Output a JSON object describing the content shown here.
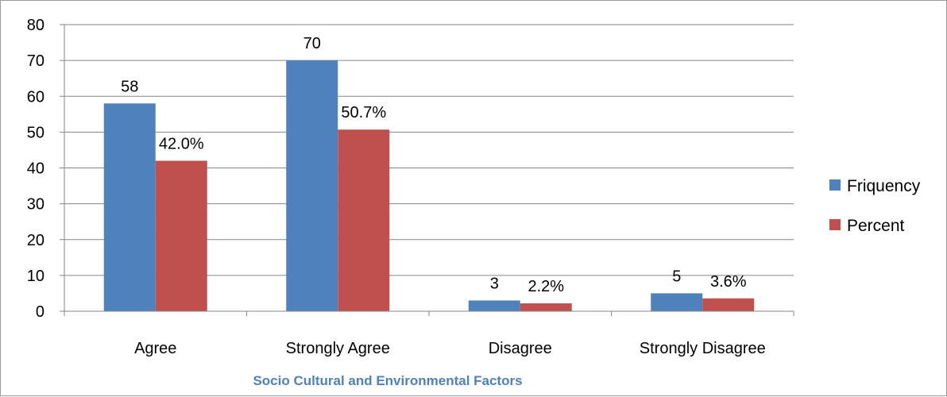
{
  "chart_data": {
    "type": "bar",
    "categories": [
      "Agree",
      "Strongly Agree",
      "Disagree",
      "Strongly Disagree"
    ],
    "series": [
      {
        "name": "Friquency",
        "values": [
          58,
          70,
          3,
          5
        ],
        "labels": [
          "58",
          "70",
          "3",
          "5"
        ],
        "color": "#4f81bd"
      },
      {
        "name": "Percent",
        "values": [
          42.0,
          50.7,
          2.2,
          3.6
        ],
        "labels": [
          "42.0%",
          "50.7%",
          "2.2%",
          "3.6%"
        ],
        "color": "#c0504d"
      }
    ],
    "title": "",
    "xlabel": "Socio Cultural and Environmental Factors",
    "ylabel": "",
    "ylim": [
      0,
      80
    ],
    "yticks": [
      "0",
      "10",
      "20",
      "30",
      "40",
      "50",
      "60",
      "70",
      "80"
    ],
    "grid": true,
    "legend_position": "right"
  }
}
